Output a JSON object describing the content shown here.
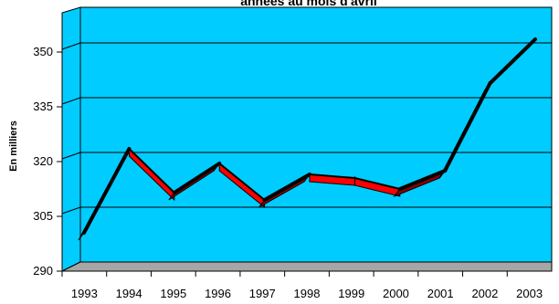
{
  "chart_data": {
    "type": "line",
    "title": "années au mois d'avril",
    "xlabel": "",
    "ylabel": "En milliers",
    "categories": [
      "1993",
      "1994",
      "1995",
      "1996",
      "1997",
      "1998",
      "1999",
      "2000",
      "2001",
      "2002",
      "2003"
    ],
    "series": [
      {
        "values": [
          298,
          321,
          309,
          317,
          307,
          314,
          313,
          310,
          315,
          339,
          351
        ]
      }
    ],
    "yticks": [
      "290",
      "305",
      "320",
      "335",
      "350"
    ],
    "ylim": [
      290,
      350
    ],
    "grid": true,
    "legend": "none",
    "colors": {
      "plot_background": "#00ccff",
      "floor": "#a6a6a6",
      "line_rising": "#000000",
      "line_falling_face": "#ff0000",
      "line_falling_shadow": "#8b0000",
      "gridline": "#000000"
    }
  }
}
